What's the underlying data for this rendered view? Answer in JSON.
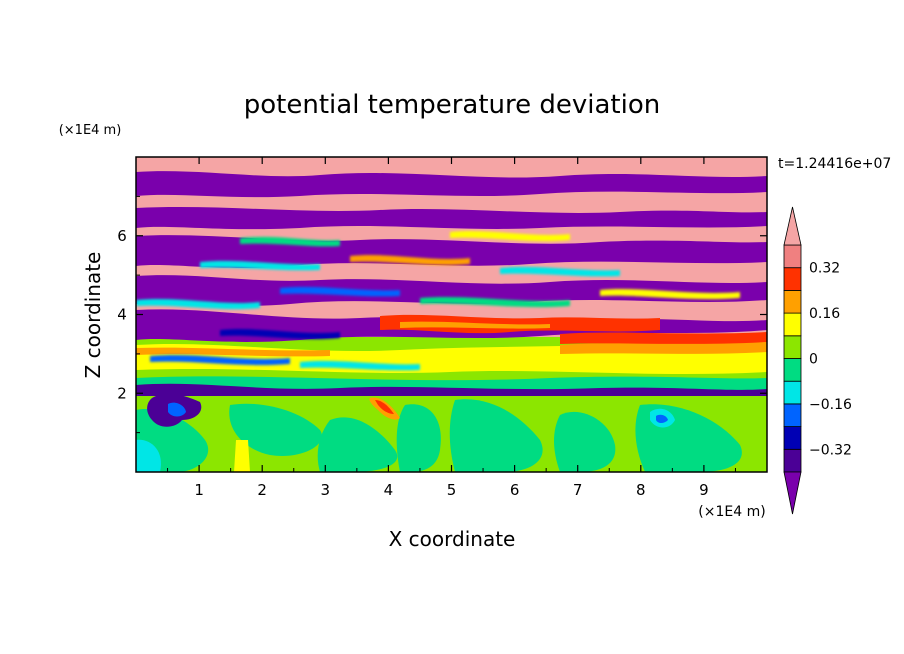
{
  "chart_data": {
    "type": "heatmap",
    "title": "potential temperature deviation",
    "xlabel": "X coordinate",
    "ylabel": "Z coordinate",
    "x_unit": "(×1E4 m)",
    "y_unit": "(×1E4 m)",
    "time_label": "t=1.24416e+07",
    "xlim": [
      0,
      10
    ],
    "ylim": [
      0,
      8
    ],
    "x_ticks": [
      "1",
      "2",
      "3",
      "4",
      "5",
      "6",
      "7",
      "8",
      "9"
    ],
    "y_ticks": [
      "2",
      "4",
      "6"
    ],
    "colorbar": {
      "levels": [
        -0.4,
        -0.32,
        -0.24,
        -0.16,
        -0.08,
        0,
        0.08,
        0.16,
        0.24,
        0.32,
        0.4
      ],
      "labels": [
        "0.32",
        "0.16",
        "0",
        "−0.16",
        "−0.32"
      ],
      "colors": [
        "#7a00ac",
        "#4b0096",
        "#0000b4",
        "#0064ff",
        "#00e6e6",
        "#00dc82",
        "#8ce600",
        "#ffff00",
        "#ffa000",
        "#ff3200",
        "#f08080",
        "#f5a5a5"
      ]
    },
    "layers": [
      {
        "z_range": [
          0,
          2
        ],
        "description_value": "mostly 0 to -0.08 with eddies"
      },
      {
        "z_range": [
          2,
          3.5
        ],
        "description_value": "mostly 0 to 0.16"
      },
      {
        "z_range": [
          3.5,
          8
        ],
        "description_value": "alternating bands of >0.4 and <-0.4"
      }
    ]
  }
}
